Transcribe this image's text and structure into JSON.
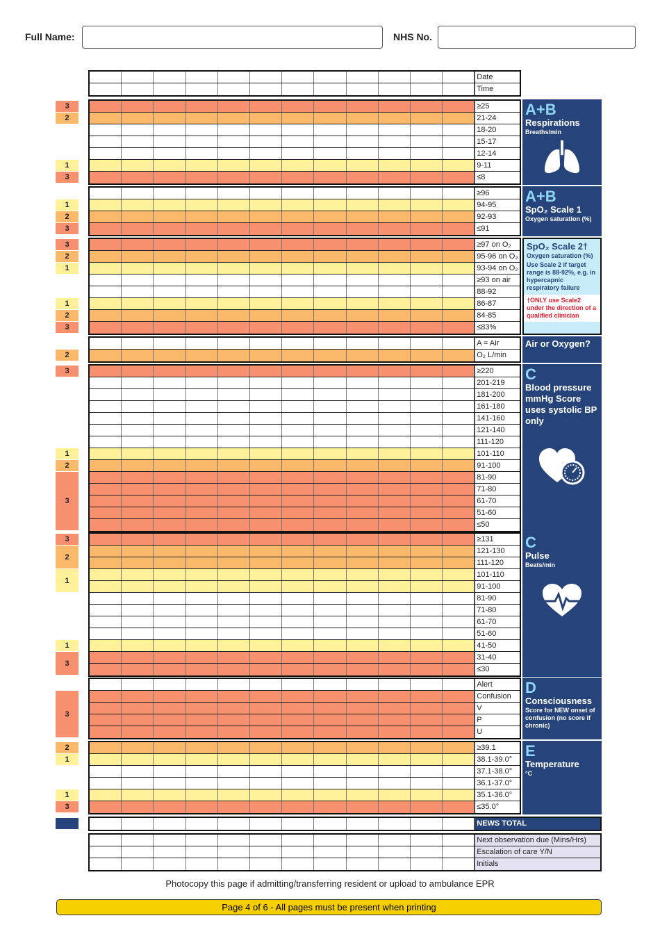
{
  "header": {
    "name_label": "Full Name:",
    "nhs_label": "NHS No.",
    "name_value": "",
    "nhs_value": ""
  },
  "colors": {
    "score3": "#f7906f",
    "score2": "#fab96a",
    "score1": "#fff199",
    "score0": "#ffffff",
    "panel": "#26437a",
    "accent": "#8fd6f5",
    "scale2_bg": "#c9ecf9",
    "warning": "#e8192c",
    "footer_bar": "#f6cf00"
  },
  "sections": [
    {
      "id": "datetime",
      "rows": [
        {
          "label": "Date",
          "score": ""
        },
        {
          "label": "Time",
          "score": ""
        }
      ]
    },
    {
      "id": "respirations",
      "rows": [
        {
          "label": "≥25",
          "score": "3"
        },
        {
          "label": "21-24",
          "score": "2"
        },
        {
          "label": "18-20",
          "score": ""
        },
        {
          "label": "15-17",
          "score": ""
        },
        {
          "label": "12-14",
          "score": ""
        },
        {
          "label": "9-11",
          "score": "1"
        },
        {
          "label": "≤8",
          "score": "3"
        }
      ],
      "panel": {
        "letter": "A+B",
        "title": "Respirations",
        "sub": "Breaths/min",
        "icon": "lungs-icon"
      }
    },
    {
      "id": "spo2-scale1",
      "rows": [
        {
          "label": "≥96",
          "score": ""
        },
        {
          "label": "94-95",
          "score": "1"
        },
        {
          "label": "92-93",
          "score": "2"
        },
        {
          "label": "≤91",
          "score": "3"
        }
      ],
      "panel": {
        "letter": "A+B",
        "title": "SpO₂ Scale 1",
        "sub": "Oxygen saturation (%)"
      }
    },
    {
      "id": "spo2-scale2",
      "rows": [
        {
          "label": "≥97 on O₂",
          "score": "3"
        },
        {
          "label": "95-96 on O₂",
          "score": "2"
        },
        {
          "label": "93-94 on O₂",
          "score": "1"
        },
        {
          "label": "≥93 on air",
          "score": ""
        },
        {
          "label": "88-92",
          "score": ""
        },
        {
          "label": "86-87",
          "score": "1"
        },
        {
          "label": "84-85",
          "score": "2"
        },
        {
          "label": "≤83%",
          "score": "3"
        }
      ],
      "panel": {
        "title": "SpO₂ Scale 2†",
        "sub": "Oxygen saturation (%)",
        "note": "Use Scale 2 if target range is 88-92%, e.g. in hypercapnic respiratory failure",
        "warning": "†ONLY use Scale2 under the direction of a qualified clinician"
      }
    },
    {
      "id": "air-oxygen",
      "rows": [
        {
          "label": "A = Air",
          "score": ""
        },
        {
          "label": "O₂ L/min",
          "score": "2"
        }
      ],
      "panel": {
        "title": "Air or Oxygen?"
      }
    },
    {
      "id": "blood-pressure",
      "rows": [
        {
          "label": "≥220",
          "score": "3"
        },
        {
          "label": "201-219",
          "score": ""
        },
        {
          "label": "181-200",
          "score": ""
        },
        {
          "label": "161-180",
          "score": ""
        },
        {
          "label": "141-160",
          "score": ""
        },
        {
          "label": "121-140",
          "score": ""
        },
        {
          "label": "111-120",
          "score": ""
        },
        {
          "label": "101-110",
          "score": "1"
        },
        {
          "label": "91-100",
          "score": "2"
        },
        {
          "label": "81-90",
          "score": "3"
        },
        {
          "label": "71-80",
          "score": "3"
        },
        {
          "label": "61-70",
          "score": "3"
        },
        {
          "label": "51-60",
          "score": "3"
        },
        {
          "label": "≤50",
          "score": "3"
        }
      ],
      "panel": {
        "letter": "C",
        "title": "Blood pressure mmHg Score uses systolic BP only",
        "icon": "heart-gauge-icon"
      }
    },
    {
      "id": "pulse",
      "rows": [
        {
          "label": "≥131",
          "score": "3"
        },
        {
          "label": "121-130",
          "score": "2"
        },
        {
          "label": "111-120",
          "score": "2"
        },
        {
          "label": "101-110",
          "score": "1"
        },
        {
          "label": "91-100",
          "score": "1"
        },
        {
          "label": "81-90",
          "score": ""
        },
        {
          "label": "71-80",
          "score": ""
        },
        {
          "label": "61-70",
          "score": ""
        },
        {
          "label": "51-60",
          "score": ""
        },
        {
          "label": "41-50",
          "score": "1"
        },
        {
          "label": "31-40",
          "score": "3"
        },
        {
          "label": "≤30",
          "score": "3"
        }
      ],
      "panel": {
        "letter": "C",
        "title": "Pulse",
        "sub": "Beats/min",
        "icon": "heart-pulse-icon"
      }
    },
    {
      "id": "consciousness",
      "rows": [
        {
          "label": "Alert",
          "score": ""
        },
        {
          "label": "Confusion",
          "score": "3"
        },
        {
          "label": "V",
          "score": "3"
        },
        {
          "label": "P",
          "score": "3"
        },
        {
          "label": "U",
          "score": "3"
        }
      ],
      "panel": {
        "letter": "D",
        "title": "Consciousness",
        "sub": "Score for NEW onset of confusion (no score if chronic)"
      }
    },
    {
      "id": "temperature",
      "rows": [
        {
          "label": "≥39.1",
          "score": "2"
        },
        {
          "label": "38.1-39.0°",
          "score": "1"
        },
        {
          "label": "37.1-38.0°",
          "score": ""
        },
        {
          "label": "36.1-37.0°",
          "score": ""
        },
        {
          "label": "35.1-36.0°",
          "score": "1"
        },
        {
          "label": "≤35.0°",
          "score": "3"
        }
      ],
      "panel": {
        "letter": "E",
        "title": "Temperature",
        "sub": "°C"
      }
    },
    {
      "id": "news-total",
      "rows": [
        {
          "label": "NEWS TOTAL",
          "score": "total"
        }
      ]
    },
    {
      "id": "followup",
      "rows": [
        {
          "label": "Next observation due (Mins/Hrs)",
          "score": ""
        },
        {
          "label": "Escalation of care Y/N",
          "score": ""
        },
        {
          "label": "Initials",
          "score": ""
        }
      ]
    }
  ],
  "footer": {
    "note": "Photocopy this page if admitting/transferring resident or upload to ambulance EPR",
    "page": "Page 4 of 6 - All pages must be present when printing"
  }
}
